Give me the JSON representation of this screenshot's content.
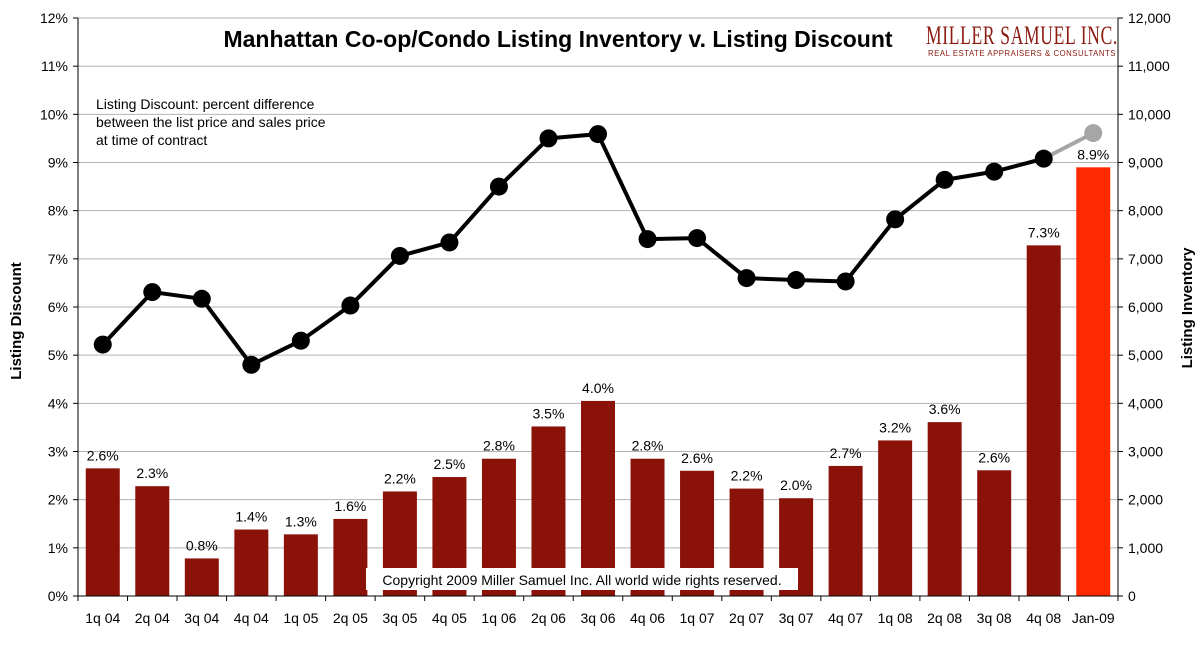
{
  "chart_data": {
    "type": "bar+line",
    "title": "Manhattan Co-op/Condo Listing Inventory v. Listing Discount",
    "categories": [
      "1q 04",
      "2q 04",
      "3q 04",
      "4q 04",
      "1q 05",
      "2q 05",
      "3q 05",
      "4q 05",
      "1q 06",
      "2q 06",
      "3q 06",
      "4q 06",
      "1q 07",
      "2q 07",
      "3q 07",
      "4q 07",
      "1q 08",
      "2q 08",
      "3q 08",
      "4q 08",
      "Jan-09"
    ],
    "series": [
      {
        "name": "Listing Discount",
        "type": "bar",
        "axis": "left",
        "values": [
          2.65,
          2.28,
          0.78,
          1.38,
          1.28,
          1.6,
          2.17,
          2.47,
          2.85,
          3.52,
          4.05,
          2.85,
          2.6,
          2.23,
          2.03,
          2.7,
          3.23,
          3.61,
          2.61,
          7.28,
          8.9
        ],
        "labels": [
          "2.6%",
          "2.3%",
          "0.8%",
          "1.4%",
          "1.3%",
          "1.6%",
          "2.2%",
          "2.5%",
          "2.8%",
          "3.5%",
          "4.0%",
          "2.8%",
          "2.6%",
          "2.2%",
          "2.0%",
          "2.7%",
          "3.2%",
          "3.6%",
          "2.6%",
          "7.3%",
          "8.9%"
        ],
        "color": "#8b1209",
        "highlight_last_color": "#ff2a00"
      },
      {
        "name": "Listing Inventory",
        "type": "line",
        "axis": "right",
        "values": [
          5220,
          6310,
          6170,
          4800,
          5300,
          6030,
          7060,
          7340,
          8500,
          9500,
          9590,
          7410,
          7430,
          6600,
          6560,
          6530,
          7820,
          8640,
          8810,
          9080,
          9610
        ],
        "color": "#000000",
        "last_segment_color": "#a6a6a6"
      }
    ],
    "left_axis": {
      "label": "Listing Discount",
      "min": 0,
      "max": 12,
      "step": 1,
      "ticks": [
        "0%",
        "1%",
        "2%",
        "3%",
        "4%",
        "5%",
        "6%",
        "7%",
        "8%",
        "9%",
        "10%",
        "11%",
        "12%"
      ]
    },
    "right_axis": {
      "label": "Listing Inventory",
      "min": 0,
      "max": 12000,
      "step": 1000,
      "ticks": [
        "0",
        "1,000",
        "2,000",
        "3,000",
        "4,000",
        "5,000",
        "6,000",
        "7,000",
        "8,000",
        "9,000",
        "10,000",
        "11,000",
        "12,000"
      ]
    },
    "grid": true,
    "annotation": [
      "Listing Discount: percent difference",
      "between the list price and sales price",
      "at time of contract"
    ],
    "copyright": "Copyright 2009 Miller Samuel Inc. All world wide rights reserved.",
    "logo": {
      "name": "MILLER SAMUEL INC.",
      "tagline": "REAL ESTATE APPRAISERS & CONSULTANTS"
    }
  }
}
